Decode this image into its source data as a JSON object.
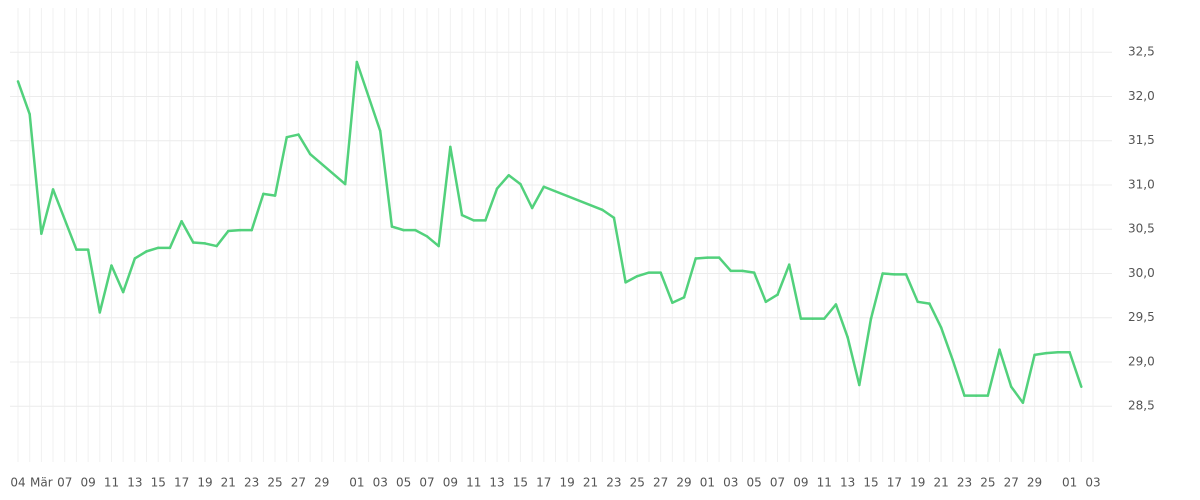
{
  "chart_data": {
    "type": "line",
    "categories": [
      "04",
      null,
      "Mär",
      null,
      "07",
      null,
      "09",
      null,
      "11",
      null,
      "13",
      null,
      "15",
      null,
      "17",
      null,
      "19",
      null,
      "21",
      null,
      "23",
      null,
      "25",
      null,
      "27",
      null,
      "29",
      null,
      null,
      "01",
      null,
      "03",
      null,
      "05",
      null,
      "07",
      null,
      "09",
      null,
      "11",
      null,
      "13",
      null,
      "15",
      null,
      "17",
      null,
      "19",
      null,
      "21",
      null,
      "23",
      null,
      "25",
      null,
      "27",
      null,
      "29",
      null,
      "01",
      null,
      "03",
      null,
      "05",
      null,
      "07",
      null,
      "09",
      null,
      "11",
      null,
      "13",
      null,
      "15",
      null,
      "17",
      null,
      "19",
      null,
      "21",
      null,
      "23",
      null,
      "25",
      null,
      "27",
      null,
      "29",
      null,
      null,
      "01",
      null,
      "03"
    ],
    "series": [
      {
        "color": "#52d17c",
        "values": [
          32.17,
          31.8,
          30.45,
          30.95,
          null,
          30.27,
          30.27,
          29.56,
          30.09,
          29.79,
          30.17,
          30.25,
          30.29,
          30.29,
          30.59,
          30.35,
          30.34,
          30.31,
          30.48,
          30.49,
          30.49,
          30.9,
          30.88,
          31.54,
          31.57,
          31.35,
          null,
          null,
          31.01,
          32.39,
          null,
          31.61,
          30.53,
          30.49,
          30.49,
          30.42,
          30.31,
          31.43,
          30.66,
          30.6,
          30.6,
          30.96,
          31.11,
          31.01,
          30.74,
          30.98,
          null,
          null,
          null,
          null,
          30.72,
          30.63,
          29.9,
          29.97,
          30.01,
          30.01,
          29.67,
          29.73,
          30.17,
          30.18,
          30.18,
          30.03,
          30.03,
          30.01,
          29.68,
          29.76,
          30.1,
          29.49,
          29.49,
          29.49,
          29.65,
          29.28,
          28.74,
          29.49,
          30.0,
          29.99,
          29.99,
          29.68,
          29.66,
          29.39,
          29.02,
          28.62,
          28.62,
          28.62,
          29.14,
          28.72,
          28.54,
          29.08,
          29.1,
          29.11,
          29.11,
          28.72,
          null
        ]
      }
    ],
    "connect_gaps": true,
    "ylim": [
      27.87,
      33.0
    ],
    "yticks": [
      {
        "value": 28.5,
        "label": "28,5"
      },
      {
        "value": 29,
        "label": "29,0"
      },
      {
        "value": 29.5,
        "label": "29,5"
      },
      {
        "value": 30,
        "label": "30,0"
      },
      {
        "value": 30.5,
        "label": "30,5"
      },
      {
        "value": 31,
        "label": "31,0"
      },
      {
        "value": 31.5,
        "label": "31,5"
      },
      {
        "value": 32,
        "label": "32,0"
      },
      {
        "value": 32.5,
        "label": "32,5"
      }
    ],
    "y_axis_side": "right",
    "grid": true
  }
}
